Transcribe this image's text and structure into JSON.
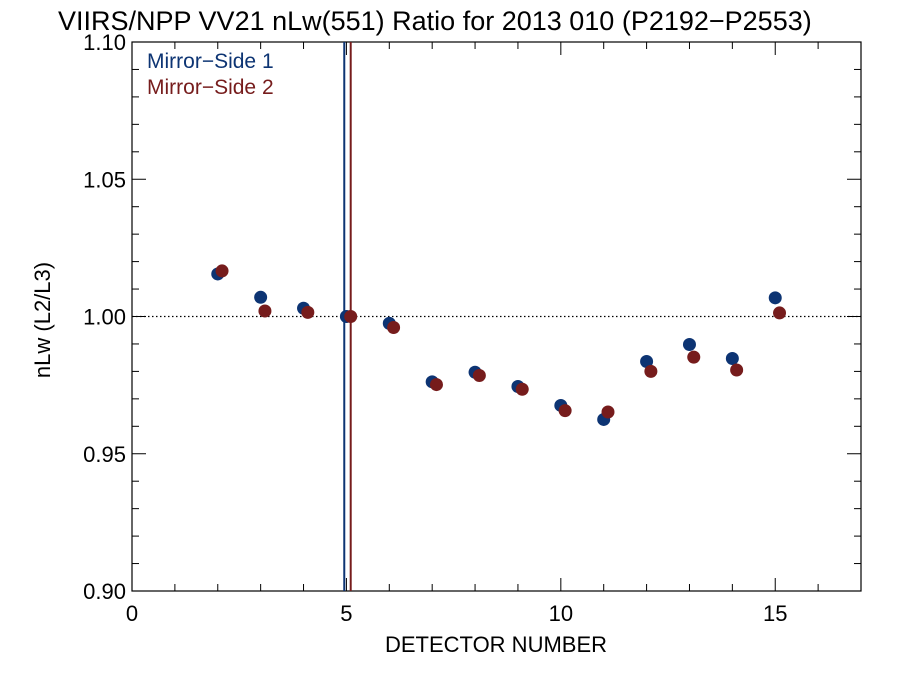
{
  "chart_data": {
    "type": "scatter",
    "title": "VIIRS/NPP VV21 nLw(551) Ratio for 2013 010 (P2192−P2553)",
    "xlabel": "DETECTOR NUMBER",
    "ylabel": "nLw (L2/L3)",
    "xlim": [
      0,
      17
    ],
    "ylim": [
      0.9,
      1.1
    ],
    "xticks": [
      0,
      5,
      10,
      15
    ],
    "xtick_labels": [
      "0",
      "5",
      "10",
      "15"
    ],
    "yticks": [
      0.9,
      0.95,
      1.0,
      1.05,
      1.1
    ],
    "ytick_labels": [
      "0.90",
      "0.95",
      "1.00",
      "1.05",
      "1.10"
    ],
    "reference_line": {
      "y": 1.0,
      "style": "dotted"
    },
    "grid": false,
    "legend_position": "top-left",
    "series": [
      {
        "name": "Mirror−Side 1",
        "color": "#0d3473",
        "vline_x": 4.95,
        "x": [
          2,
          3,
          4,
          5,
          6,
          7,
          8,
          9,
          10,
          11,
          12,
          13,
          14,
          15
        ],
        "y": [
          1.0155,
          1.007,
          1.003,
          1.0,
          0.9975,
          0.9762,
          0.9797,
          0.9745,
          0.9676,
          0.9625,
          0.9836,
          0.9898,
          0.9847,
          1.0068
        ]
      },
      {
        "name": "Mirror−Side 2",
        "color": "#761c1c",
        "vline_x": 5.1,
        "x": [
          2.1,
          3.1,
          4.1,
          5.1,
          6.1,
          7.1,
          8.1,
          9.1,
          10.1,
          11.1,
          12.1,
          13.1,
          14.1,
          15.1
        ],
        "y": [
          1.0166,
          1.002,
          1.0015,
          1.0,
          0.996,
          0.9752,
          0.9785,
          0.9735,
          0.9657,
          0.9652,
          0.98,
          0.9852,
          0.9805,
          1.0013
        ]
      }
    ]
  }
}
